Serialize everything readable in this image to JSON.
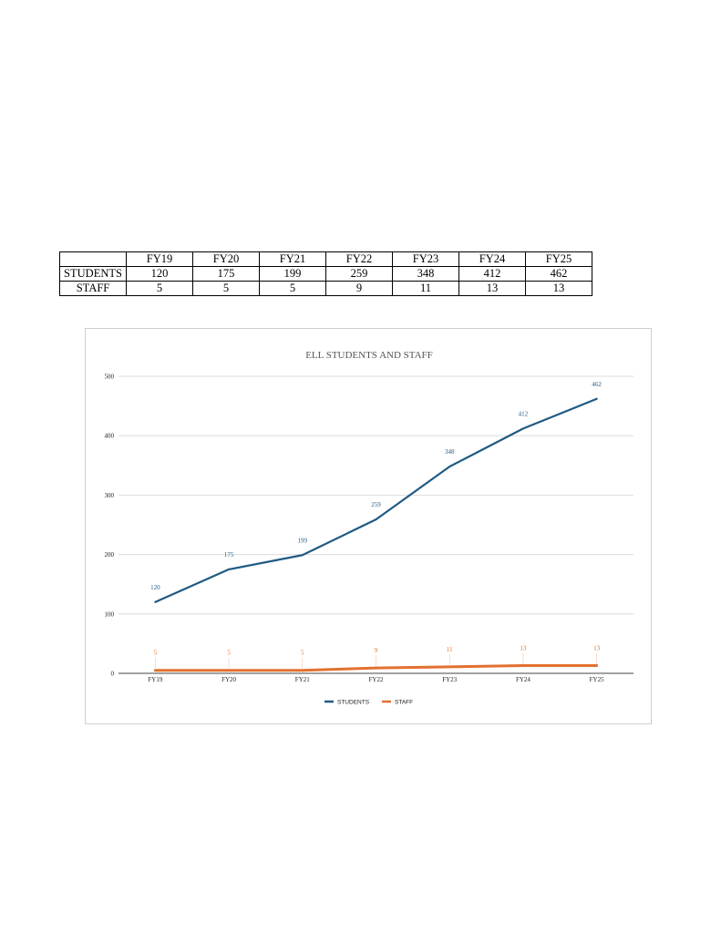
{
  "table": {
    "headers": [
      "",
      "FY19",
      "FY20",
      "FY21",
      "FY22",
      "FY23",
      "FY24",
      "FY25"
    ],
    "rows": [
      {
        "label": "STUDENTS",
        "values": [
          "120",
          "175",
          "199",
          "259",
          "348",
          "412",
          "462"
        ]
      },
      {
        "label": "STAFF",
        "values": [
          "5",
          "5",
          "5",
          "9",
          "11",
          "13",
          "13"
        ]
      }
    ]
  },
  "chart_data": {
    "type": "line",
    "title": "ELL STUDENTS AND STAFF",
    "xlabel": "",
    "ylabel": "",
    "categories": [
      "FY19",
      "FY20",
      "FY21",
      "FY22",
      "FY23",
      "FY24",
      "FY25"
    ],
    "ylim": [
      0,
      500
    ],
    "yticks": [
      0,
      100,
      200,
      300,
      400,
      500
    ],
    "grid": true,
    "legend_position": "bottom",
    "data_labels": true,
    "series": [
      {
        "name": "STUDENTS",
        "color": "#1f5a84",
        "values": [
          120,
          175,
          199,
          259,
          348,
          412,
          462
        ]
      },
      {
        "name": "STAFF",
        "color": "#e2712f",
        "values": [
          5,
          5,
          5,
          9,
          11,
          13,
          13
        ]
      }
    ]
  }
}
